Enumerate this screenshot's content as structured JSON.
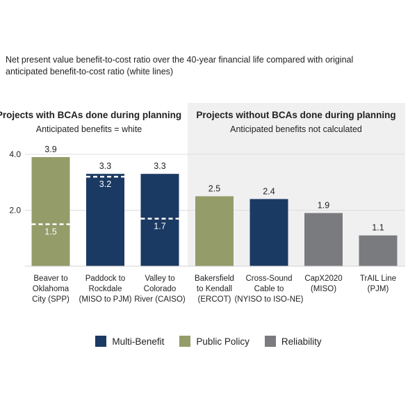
{
  "subtitle": "Net present value benefit-to-cost ratio over the 40-year financial life compared with original anticipated benefit-to-cost ratio (white lines)",
  "colors": {
    "multi_benefit": "#1b3a63",
    "public_policy": "#949c6a",
    "reliability": "#7a7b7f",
    "panel_shade": "#f0f0f0",
    "grid": "#dedede",
    "marker": "#ffffff"
  },
  "panels": [
    {
      "title": "Projects with BCAs done during planning",
      "note": "Anticipated benefits = white"
    },
    {
      "title": "Projects without BCAs done during planning",
      "note": "Anticipated benefits not calculated"
    }
  ],
  "legend": [
    {
      "label": "Multi-Benefit",
      "category": "multi_benefit"
    },
    {
      "label": "Public Policy",
      "category": "public_policy"
    },
    {
      "label": "Reliability",
      "category": "reliability"
    }
  ],
  "chart_data": {
    "type": "bar",
    "title": "Net present value benefit-to-cost ratio over the 40-year financial life compared with original anticipated benefit-to-cost ratio (white lines)",
    "xlabel": "",
    "ylabel": "",
    "ylim": [
      0,
      4
    ],
    "yticks": [
      2.0,
      4.0
    ],
    "yticklabels": [
      "2.0",
      "4.0"
    ],
    "grid": true,
    "categories": [
      [
        "Beaver to",
        "Oklahoma",
        "City (SPP)"
      ],
      [
        "Paddock to",
        "Rockdale",
        "(MISO to PJM)"
      ],
      [
        "Valley to",
        "Colorado",
        "River (CAISO)"
      ],
      [
        "Bakersfield",
        "to Kendall",
        "(ERCOT)"
      ],
      [
        "Cross-Sound",
        "Cable to",
        "(NYISO to ISO-NE)"
      ],
      [
        "CapX2020",
        "(MISO)"
      ],
      [
        "TrAIL Line",
        "(PJM)"
      ]
    ],
    "values": [
      3.9,
      3.3,
      3.3,
      2.5,
      2.4,
      1.9,
      1.1
    ],
    "value_labels": [
      "3.9",
      "3.3",
      "3.3",
      "2.5",
      "2.4",
      "1.9",
      "1.1"
    ],
    "bar_category": [
      "public_policy",
      "multi_benefit",
      "multi_benefit",
      "public_policy",
      "multi_benefit",
      "reliability",
      "reliability"
    ],
    "anticipated": [
      1.5,
      3.2,
      1.7,
      null,
      null,
      null,
      null
    ],
    "anticipated_labels": [
      "1.5",
      "3.2",
      "1.7",
      null,
      null,
      null,
      null
    ],
    "panel_groups": [
      [
        0,
        1,
        2
      ],
      [
        3,
        4,
        5,
        6
      ]
    ]
  }
}
